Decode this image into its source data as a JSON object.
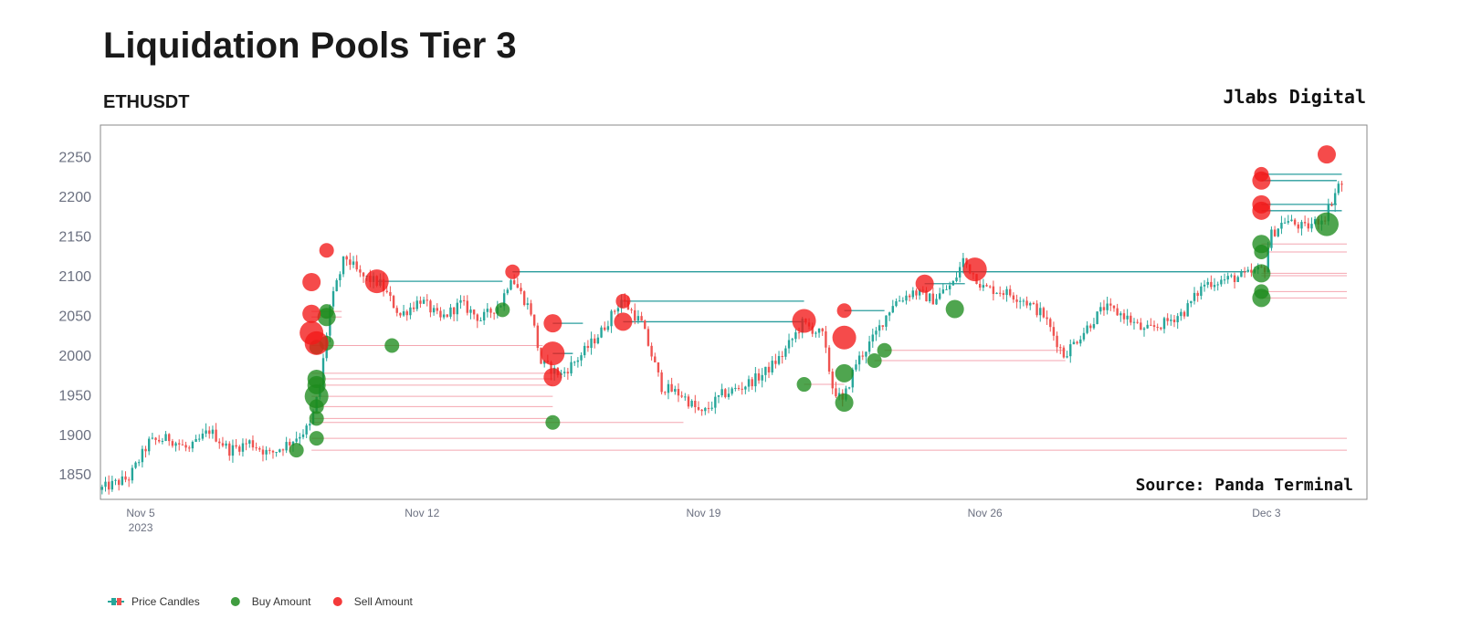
{
  "header": {
    "title": "Liquidation Pools Tier 3",
    "subtitle": "ETHUSDT",
    "brand": "Jlabs Digital"
  },
  "source_label": "Source: Panda Terminal",
  "colors": {
    "up": "#26a69a",
    "down": "#ef5350",
    "buy": "#1e8c1e",
    "sell": "#f21818",
    "pool_line_sell": "#f4a6b0",
    "pool_line_buy": "#2a9d9d",
    "frame": "#888888"
  },
  "chart_data": {
    "type": "candlestick",
    "title": "Liquidation Pools Tier 3",
    "subtitle": "ETHUSDT",
    "y_ticks": [
      1850,
      1900,
      1950,
      2000,
      2050,
      2100,
      2150,
      2200,
      2250
    ],
    "ylim": [
      1818,
      2290
    ],
    "x_range": [
      "2023-11-04 00:00",
      "2023-12-05 12:00"
    ],
    "x_ticks": [
      {
        "date": "2023-11-05",
        "label": "Nov 5",
        "sublabel": "2023"
      },
      {
        "date": "2023-11-12",
        "label": "Nov 12",
        "sublabel": ""
      },
      {
        "date": "2023-11-19",
        "label": "Nov 19",
        "sublabel": ""
      },
      {
        "date": "2023-11-26",
        "label": "Nov 26",
        "sublabel": ""
      },
      {
        "date": "2023-12-03",
        "label": "Dec 3",
        "sublabel": ""
      }
    ],
    "grid": false,
    "legend": {
      "position": "bottom-left",
      "items": [
        {
          "name": "Price Candles",
          "symbol": "candle"
        },
        {
          "name": "Buy Amount",
          "symbol": "buy"
        },
        {
          "name": "Sell Amount",
          "symbol": "sell"
        }
      ]
    },
    "price_path": [
      [
        "2023-11-04 00:00",
        1830
      ],
      [
        "2023-11-04 18:00",
        1845
      ],
      [
        "2023-11-05 06:00",
        1890
      ],
      [
        "2023-11-05 18:00",
        1895
      ],
      [
        "2023-11-06 06:00",
        1880
      ],
      [
        "2023-11-06 18:00",
        1905
      ],
      [
        "2023-11-07 06:00",
        1880
      ],
      [
        "2023-11-07 18:00",
        1890
      ],
      [
        "2023-11-08 06:00",
        1875
      ],
      [
        "2023-11-08 18:00",
        1890
      ],
      [
        "2023-11-09 06:00",
        1910
      ],
      [
        "2023-11-09 12:00",
        1960
      ],
      [
        "2023-11-09 18:00",
        2060
      ],
      [
        "2023-11-10 03:00",
        2125
      ],
      [
        "2023-11-10 12:00",
        2100
      ],
      [
        "2023-11-11 00:00",
        2090
      ],
      [
        "2023-11-11 12:00",
        2050
      ],
      [
        "2023-11-12 00:00",
        2070
      ],
      [
        "2023-11-12 12:00",
        2045
      ],
      [
        "2023-11-13 00:00",
        2065
      ],
      [
        "2023-11-13 12:00",
        2045
      ],
      [
        "2023-11-14 00:00",
        2065
      ],
      [
        "2023-11-14 06:00",
        2100
      ],
      [
        "2023-11-14 18:00",
        2055
      ],
      [
        "2023-11-15 00:00",
        1990
      ],
      [
        "2023-11-15 12:00",
        1975
      ],
      [
        "2023-11-16 00:00",
        2000
      ],
      [
        "2023-11-16 12:00",
        2030
      ],
      [
        "2023-11-17 00:00",
        2070
      ],
      [
        "2023-11-17 12:00",
        2040
      ],
      [
        "2023-11-18 00:00",
        1960
      ],
      [
        "2023-11-18 12:00",
        1950
      ],
      [
        "2023-11-19 00:00",
        1925
      ],
      [
        "2023-11-19 12:00",
        1950
      ],
      [
        "2023-11-20 00:00",
        1960
      ],
      [
        "2023-11-20 12:00",
        1975
      ],
      [
        "2023-11-21 00:00",
        2000
      ],
      [
        "2023-11-21 12:00",
        2040
      ],
      [
        "2023-11-22 00:00",
        2025
      ],
      [
        "2023-11-22 06:00",
        1960
      ],
      [
        "2023-11-22 12:00",
        1940
      ],
      [
        "2023-11-22 20:00",
        1990
      ],
      [
        "2023-11-23 06:00",
        2020
      ],
      [
        "2023-11-23 18:00",
        2065
      ],
      [
        "2023-11-24 06:00",
        2080
      ],
      [
        "2023-11-24 18:00",
        2070
      ],
      [
        "2023-11-25 06:00",
        2090
      ],
      [
        "2023-11-25 12:00",
        2120
      ],
      [
        "2023-11-26 00:00",
        2085
      ],
      [
        "2023-11-26 12:00",
        2080
      ],
      [
        "2023-11-27 00:00",
        2070
      ],
      [
        "2023-11-27 12:00",
        2050
      ],
      [
        "2023-11-28 00:00",
        2000
      ],
      [
        "2023-11-28 12:00",
        2030
      ],
      [
        "2023-11-29 00:00",
        2060
      ],
      [
        "2023-11-29 12:00",
        2050
      ],
      [
        "2023-11-30 00:00",
        2030
      ],
      [
        "2023-11-30 12:00",
        2040
      ],
      [
        "2023-12-01 00:00",
        2055
      ],
      [
        "2023-12-01 12:00",
        2090
      ],
      [
        "2023-12-02 00:00",
        2095
      ],
      [
        "2023-12-02 12:00",
        2100
      ],
      [
        "2023-12-03 00:00",
        2110
      ],
      [
        "2023-12-03 03:00",
        2150
      ],
      [
        "2023-12-03 12:00",
        2170
      ],
      [
        "2023-12-04 00:00",
        2160
      ],
      [
        "2023-12-04 12:00",
        2175
      ],
      [
        "2023-12-04 20:00",
        2215
      ]
    ],
    "buy_points": [
      {
        "t": "2023-11-08 21:00",
        "price": 1880,
        "size": 1
      },
      {
        "t": "2023-11-09 09:00",
        "price": 1895,
        "size": 1
      },
      {
        "t": "2023-11-09 09:00",
        "price": 1920,
        "size": 1
      },
      {
        "t": "2023-11-09 09:00",
        "price": 1935,
        "size": 1
      },
      {
        "t": "2023-11-09 09:00",
        "price": 1948,
        "size": 3
      },
      {
        "t": "2023-11-09 09:00",
        "price": 1962,
        "size": 2
      },
      {
        "t": "2023-11-09 09:00",
        "price": 1970,
        "size": 2
      },
      {
        "t": "2023-11-09 09:00",
        "price": 2010,
        "size": 1
      },
      {
        "t": "2023-11-09 15:00",
        "price": 2015,
        "size": 1
      },
      {
        "t": "2023-11-09 15:00",
        "price": 2048,
        "size": 2
      },
      {
        "t": "2023-11-09 15:00",
        "price": 2055,
        "size": 1
      },
      {
        "t": "2023-11-11 06:00",
        "price": 2012,
        "size": 1
      },
      {
        "t": "2023-11-14 00:00",
        "price": 2057,
        "size": 1
      },
      {
        "t": "2023-11-15 06:00",
        "price": 1915,
        "size": 1
      },
      {
        "t": "2023-11-21 12:00",
        "price": 1963,
        "size": 1
      },
      {
        "t": "2023-11-22 12:00",
        "price": 1940,
        "size": 2
      },
      {
        "t": "2023-11-22 12:00",
        "price": 1977,
        "size": 2
      },
      {
        "t": "2023-11-23 06:00",
        "price": 1993,
        "size": 1
      },
      {
        "t": "2023-11-23 12:00",
        "price": 2006,
        "size": 1
      },
      {
        "t": "2023-11-25 06:00",
        "price": 2058,
        "size": 2
      },
      {
        "t": "2023-12-02 21:00",
        "price": 2072,
        "size": 2
      },
      {
        "t": "2023-12-02 21:00",
        "price": 2080,
        "size": 1
      },
      {
        "t": "2023-12-02 21:00",
        "price": 2103,
        "size": 2
      },
      {
        "t": "2023-12-02 21:00",
        "price": 2130,
        "size": 1
      },
      {
        "t": "2023-12-02 21:00",
        "price": 2140,
        "size": 2
      },
      {
        "t": "2023-12-04 12:00",
        "price": 2165,
        "size": 3
      }
    ],
    "sell_points": [
      {
        "t": "2023-11-09 06:00",
        "price": 2092,
        "size": 2
      },
      {
        "t": "2023-11-09 06:00",
        "price": 2052,
        "size": 2
      },
      {
        "t": "2023-11-09 06:00",
        "price": 2028,
        "size": 3
      },
      {
        "t": "2023-11-09 09:00",
        "price": 2015,
        "size": 3
      },
      {
        "t": "2023-11-09 15:00",
        "price": 2132,
        "size": 1
      },
      {
        "t": "2023-11-10 21:00",
        "price": 2093,
        "size": 3
      },
      {
        "t": "2023-11-14 06:00",
        "price": 2105,
        "size": 1
      },
      {
        "t": "2023-11-15 06:00",
        "price": 2040,
        "size": 2
      },
      {
        "t": "2023-11-15 06:00",
        "price": 2002,
        "size": 3
      },
      {
        "t": "2023-11-15 06:00",
        "price": 1972,
        "size": 2
      },
      {
        "t": "2023-11-17 00:00",
        "price": 2068,
        "size": 1
      },
      {
        "t": "2023-11-17 00:00",
        "price": 2042,
        "size": 2
      },
      {
        "t": "2023-11-21 12:00",
        "price": 2043,
        "size": 3
      },
      {
        "t": "2023-11-22 12:00",
        "price": 2056,
        "size": 1
      },
      {
        "t": "2023-11-22 12:00",
        "price": 2022,
        "size": 3
      },
      {
        "t": "2023-11-24 12:00",
        "price": 2090,
        "size": 2
      },
      {
        "t": "2023-11-25 18:00",
        "price": 2108,
        "size": 3
      },
      {
        "t": "2023-12-02 21:00",
        "price": 2182,
        "size": 2
      },
      {
        "t": "2023-12-02 21:00",
        "price": 2190,
        "size": 2
      },
      {
        "t": "2023-12-02 21:00",
        "price": 2220,
        "size": 2
      },
      {
        "t": "2023-12-02 21:00",
        "price": 2228,
        "size": 1
      },
      {
        "t": "2023-12-04 12:00",
        "price": 2253,
        "size": 2
      }
    ],
    "pool_lines": [
      {
        "start": "2023-11-09 06:00",
        "end": "2023-12-05 00:00",
        "price": 1880,
        "kind": "sell"
      },
      {
        "start": "2023-11-09 06:00",
        "end": "2023-12-05 00:00",
        "price": 1895,
        "kind": "sell"
      },
      {
        "start": "2023-11-09 06:00",
        "end": "2023-11-18 12:00",
        "price": 1915,
        "kind": "sell"
      },
      {
        "start": "2023-11-09 06:00",
        "end": "2023-11-15 06:00",
        "price": 1920,
        "kind": "sell"
      },
      {
        "start": "2023-11-09 06:00",
        "end": "2023-11-15 06:00",
        "price": 1935,
        "kind": "sell"
      },
      {
        "start": "2023-11-09 06:00",
        "end": "2023-11-15 06:00",
        "price": 1948,
        "kind": "sell"
      },
      {
        "start": "2023-11-09 06:00",
        "end": "2023-11-15 06:00",
        "price": 1962,
        "kind": "sell"
      },
      {
        "start": "2023-11-09 06:00",
        "end": "2023-11-15 06:00",
        "price": 1970,
        "kind": "sell"
      },
      {
        "start": "2023-11-09 06:00",
        "end": "2023-11-15 06:00",
        "price": 1977,
        "kind": "sell"
      },
      {
        "start": "2023-11-21 12:00",
        "end": "2023-11-22 12:00",
        "price": 1963,
        "kind": "sell"
      },
      {
        "start": "2023-11-23 06:00",
        "end": "2023-11-28 00:00",
        "price": 1993,
        "kind": "sell"
      },
      {
        "start": "2023-11-23 12:00",
        "end": "2023-11-28 00:00",
        "price": 2006,
        "kind": "sell"
      },
      {
        "start": "2023-11-09 06:00",
        "end": "2023-11-15 00:00",
        "price": 2012,
        "kind": "sell"
      },
      {
        "start": "2023-11-09 06:00",
        "end": "2023-11-10 00:00",
        "price": 2048,
        "kind": "sell"
      },
      {
        "start": "2023-11-09 06:00",
        "end": "2023-11-10 00:00",
        "price": 2055,
        "kind": "sell"
      },
      {
        "start": "2023-12-02 21:00",
        "end": "2023-12-05 00:00",
        "price": 2072,
        "kind": "sell"
      },
      {
        "start": "2023-12-02 21:00",
        "end": "2023-12-05 00:00",
        "price": 2080,
        "kind": "sell"
      },
      {
        "start": "2023-12-02 21:00",
        "end": "2023-12-05 00:00",
        "price": 2100,
        "kind": "sell"
      },
      {
        "start": "2023-12-02 21:00",
        "end": "2023-12-05 00:00",
        "price": 2103,
        "kind": "sell"
      },
      {
        "start": "2023-12-02 21:00",
        "end": "2023-12-05 00:00",
        "price": 2130,
        "kind": "sell"
      },
      {
        "start": "2023-12-02 21:00",
        "end": "2023-12-05 00:00",
        "price": 2140,
        "kind": "sell"
      },
      {
        "start": "2023-11-10 21:00",
        "end": "2023-11-14 00:00",
        "price": 2093,
        "kind": "buy"
      },
      {
        "start": "2023-11-14 06:00",
        "end": "2023-12-02 12:00",
        "price": 2105,
        "kind": "buy"
      },
      {
        "start": "2023-11-15 06:00",
        "end": "2023-11-16 00:00",
        "price": 2040,
        "kind": "buy"
      },
      {
        "start": "2023-11-15 06:00",
        "end": "2023-11-15 18:00",
        "price": 2002,
        "kind": "buy"
      },
      {
        "start": "2023-11-17 00:00",
        "end": "2023-11-21 12:00",
        "price": 2068,
        "kind": "buy"
      },
      {
        "start": "2023-11-17 00:00",
        "end": "2023-11-21 12:00",
        "price": 2042,
        "kind": "buy"
      },
      {
        "start": "2023-11-22 12:00",
        "end": "2023-11-23 12:00",
        "price": 2056,
        "kind": "buy"
      },
      {
        "start": "2023-11-24 12:00",
        "end": "2023-11-25 12:00",
        "price": 2090,
        "kind": "buy"
      },
      {
        "start": "2023-12-02 21:00",
        "end": "2023-12-04 21:00",
        "price": 2182,
        "kind": "buy"
      },
      {
        "start": "2023-12-02 21:00",
        "end": "2023-12-04 18:00",
        "price": 2190,
        "kind": "buy"
      },
      {
        "start": "2023-12-02 21:00",
        "end": "2023-12-04 18:00",
        "price": 2220,
        "kind": "buy"
      },
      {
        "start": "2023-12-02 21:00",
        "end": "2023-12-04 21:00",
        "price": 2228,
        "kind": "buy"
      }
    ]
  }
}
